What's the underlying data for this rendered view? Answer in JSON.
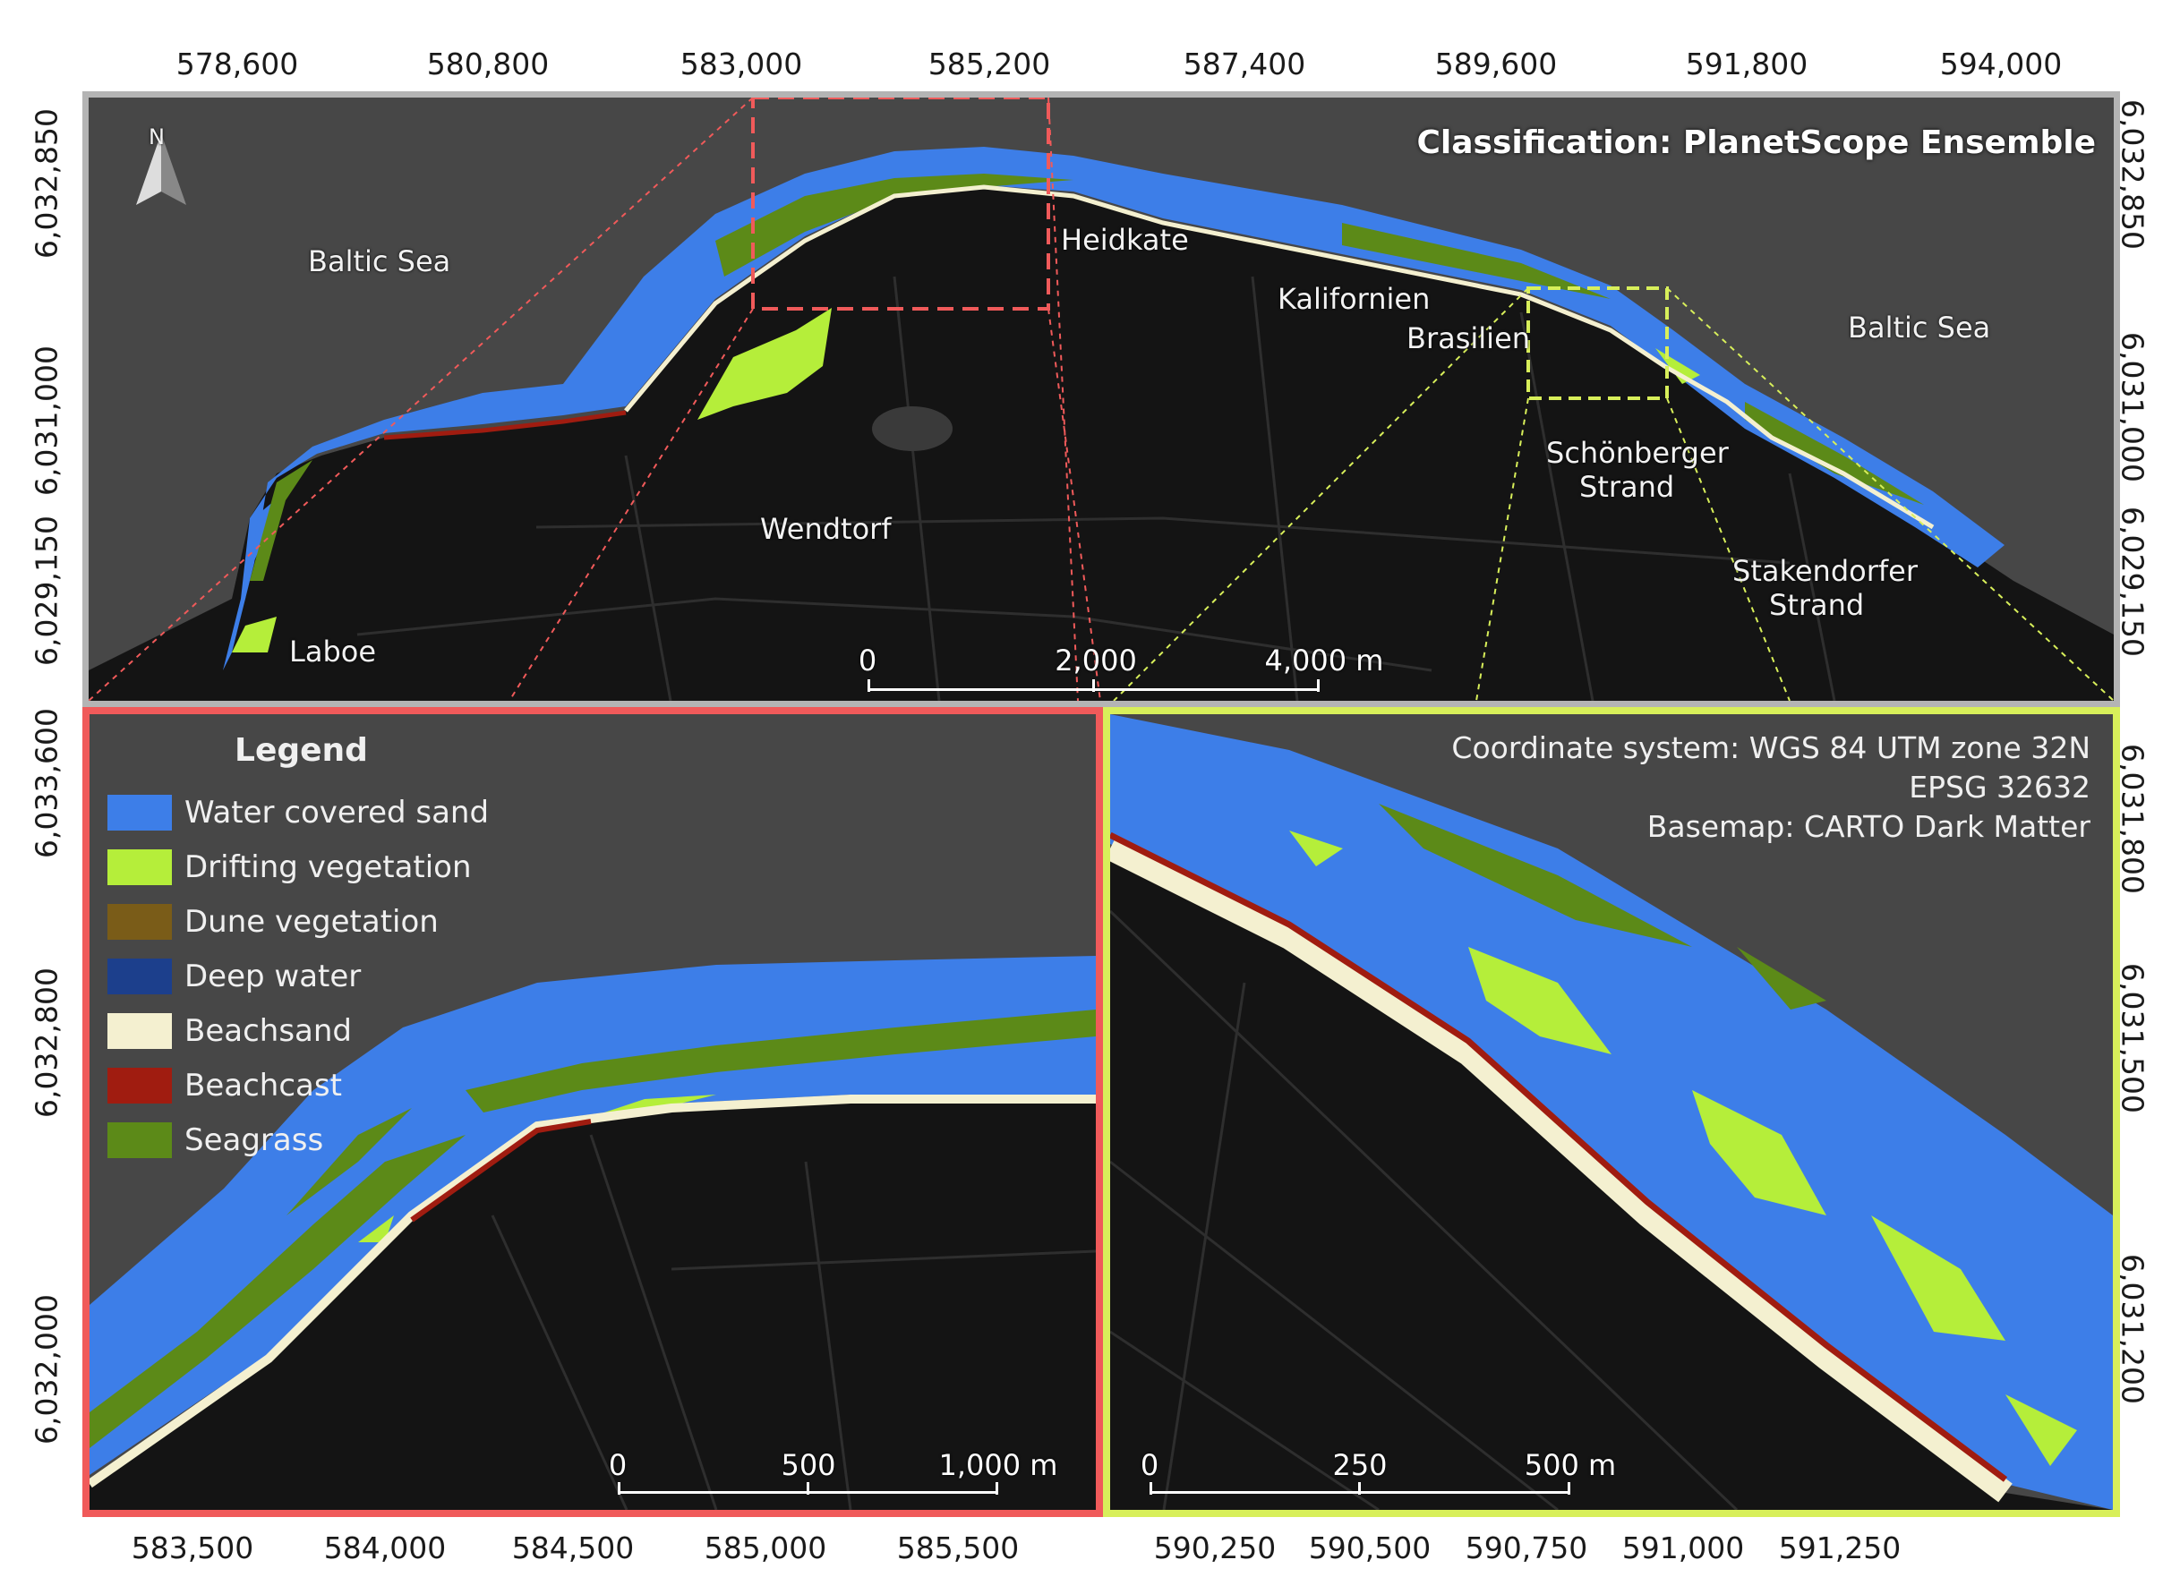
{
  "main_map": {
    "title": "Classification: PlanetScope Ensemble",
    "north_label": "N",
    "x_ticks": [
      "578,600",
      "580,800",
      "583,000",
      "585,200",
      "587,400",
      "589,600",
      "591,800",
      "594,000"
    ],
    "y_ticks": [
      "6,032,850",
      "6,031,000",
      "6,029,150"
    ],
    "places": {
      "baltic_sea_west": "Baltic Sea",
      "baltic_sea_east": "Baltic Sea",
      "heidkate": "Heidkate",
      "kalifornien": "Kalifornien",
      "brasilien": "Brasilien",
      "schoenberger_1": "Schönberger",
      "schoenberger_2": "Strand",
      "stakendorfer_1": "Stakendorfer",
      "stakendorfer_2": "Strand",
      "wendtorf": "Wendtorf",
      "laboe": "Laboe"
    },
    "scalebar": [
      "0",
      "2,000",
      "4,000 m"
    ],
    "frame_color": "#b4b4b4"
  },
  "inset_left": {
    "frame_color": "#f05a5a",
    "x_ticks": [
      "583,500",
      "584,000",
      "584,500",
      "585,000",
      "585,500"
    ],
    "y_ticks": [
      "6,033,600",
      "6,032,800",
      "6,032,000"
    ],
    "scalebar": [
      "0",
      "500",
      "1,000 m"
    ]
  },
  "inset_right": {
    "frame_color": "#d8ef5a",
    "x_ticks": [
      "590,250",
      "590,500",
      "590,750",
      "591,000",
      "591,250"
    ],
    "y_ticks": [
      "6,031,800",
      "6,031,500",
      "6,031,200"
    ],
    "scalebar": [
      "0",
      "250",
      "500 m"
    ],
    "meta": {
      "line1": "Coordinate system: WGS 84 UTM zone 32N",
      "line2": "EPSG 32632",
      "line3": "Basemap: CARTO Dark Matter"
    }
  },
  "legend": {
    "title": "Legend",
    "items": [
      {
        "label": "Water covered sand",
        "color": "#3d7ee8"
      },
      {
        "label": "Drifting vegetation",
        "color": "#b5ee3a"
      },
      {
        "label": "Dune vegetation",
        "color": "#7a5c18"
      },
      {
        "label": "Deep water",
        "color": "#1c3f8c"
      },
      {
        "label": "Beachsand",
        "color": "#f4f0d0"
      },
      {
        "label": "Beachcast",
        "color": "#a01c10"
      },
      {
        "label": "Seagrass",
        "color": "#5c8a18"
      }
    ]
  },
  "colors": {
    "sea": "#474747",
    "land": "#141414",
    "road": "#2e2e2e",
    "water_covered_sand": "#3d7ee8",
    "drifting_vegetation": "#b5ee3a",
    "seagrass": "#5c8a18",
    "beachsand": "#f4f0d0",
    "beachcast": "#a01c10",
    "red_box": "#f05a5a",
    "yellow_box": "#d8ef5a"
  }
}
